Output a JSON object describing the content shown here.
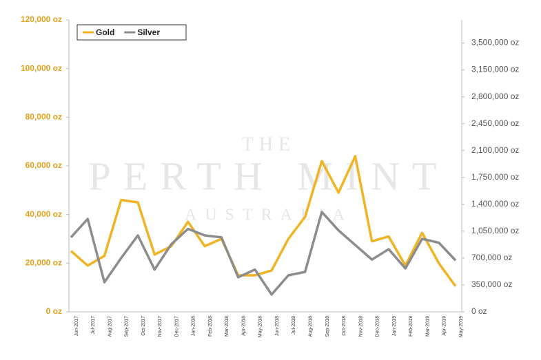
{
  "chart_data": {
    "type": "line",
    "watermark": [
      "THE",
      "PERTH MINT",
      "AUSTRALIA"
    ],
    "categories": [
      "Jun-2017",
      "Jul-2017",
      "Aug-2017",
      "Sep-2017",
      "Oct-2017",
      "Nov-2017",
      "Dec-2017",
      "Jan-2018",
      "Feb-2018",
      "Mar-2018",
      "Apr-2018",
      "May-2018",
      "Jun-2018",
      "Jul-2018",
      "Aug-2018",
      "Sep-2018",
      "Oct-2018",
      "Nov-2018",
      "Dec-2018",
      "Jan-2019",
      "Feb-2019",
      "Mar-2019",
      "Apr-2019",
      "May-2019"
    ],
    "series": [
      {
        "name": "Gold",
        "color": "#f0b323",
        "axis": "y",
        "values": [
          25000,
          19000,
          23000,
          46000,
          45000,
          23500,
          27000,
          37000,
          27000,
          30000,
          15000,
          15000,
          17000,
          30000,
          39000,
          62000,
          49000,
          64000,
          29000,
          31000,
          19000,
          32500,
          20000,
          10500
        ]
      },
      {
        "name": "Silver",
        "color": "#8c8c8c",
        "axis": "y2",
        "values": [
          970000,
          1210000,
          385000,
          700000,
          995000,
          550000,
          880000,
          1080000,
          995000,
          970000,
          450000,
          550000,
          225000,
          475000,
          520000,
          1300000,
          1060000,
          870000,
          680000,
          815000,
          565000,
          950000,
          900000,
          670000
        ]
      }
    ],
    "ylim": [
      0,
      120000
    ],
    "yticks": [
      {
        "value": 0,
        "label": "0 oz"
      },
      {
        "value": 20000,
        "label": "20,000 oz"
      },
      {
        "value": 40000,
        "label": "40,000 oz"
      },
      {
        "value": 60000,
        "label": "60,000 oz"
      },
      {
        "value": 80000,
        "label": "80,000 oz"
      },
      {
        "value": 100000,
        "label": "100,000 oz"
      },
      {
        "value": 120000,
        "label": "120,000 oz"
      }
    ],
    "y2lim": [
      0,
      3800000
    ],
    "y2ticks": [
      {
        "value": 0,
        "label": "0 oz"
      },
      {
        "value": 350000,
        "label": "350,000 oz"
      },
      {
        "value": 700000,
        "label": "700,000 oz"
      },
      {
        "value": 1050000,
        "label": "1,050,000 oz"
      },
      {
        "value": 1400000,
        "label": "1,400,000 oz"
      },
      {
        "value": 1750000,
        "label": "1,750,000 oz"
      },
      {
        "value": 2100000,
        "label": "2,100,000 oz"
      },
      {
        "value": 2450000,
        "label": "2,450,000 oz"
      },
      {
        "value": 2800000,
        "label": "2,800,000 oz"
      },
      {
        "value": 3150000,
        "label": "3,150,000 oz"
      },
      {
        "value": 3500000,
        "label": "3,500,000 oz"
      }
    ],
    "legend": "upper left",
    "ycolor": "#e3a21a",
    "y2color": "#555555"
  }
}
